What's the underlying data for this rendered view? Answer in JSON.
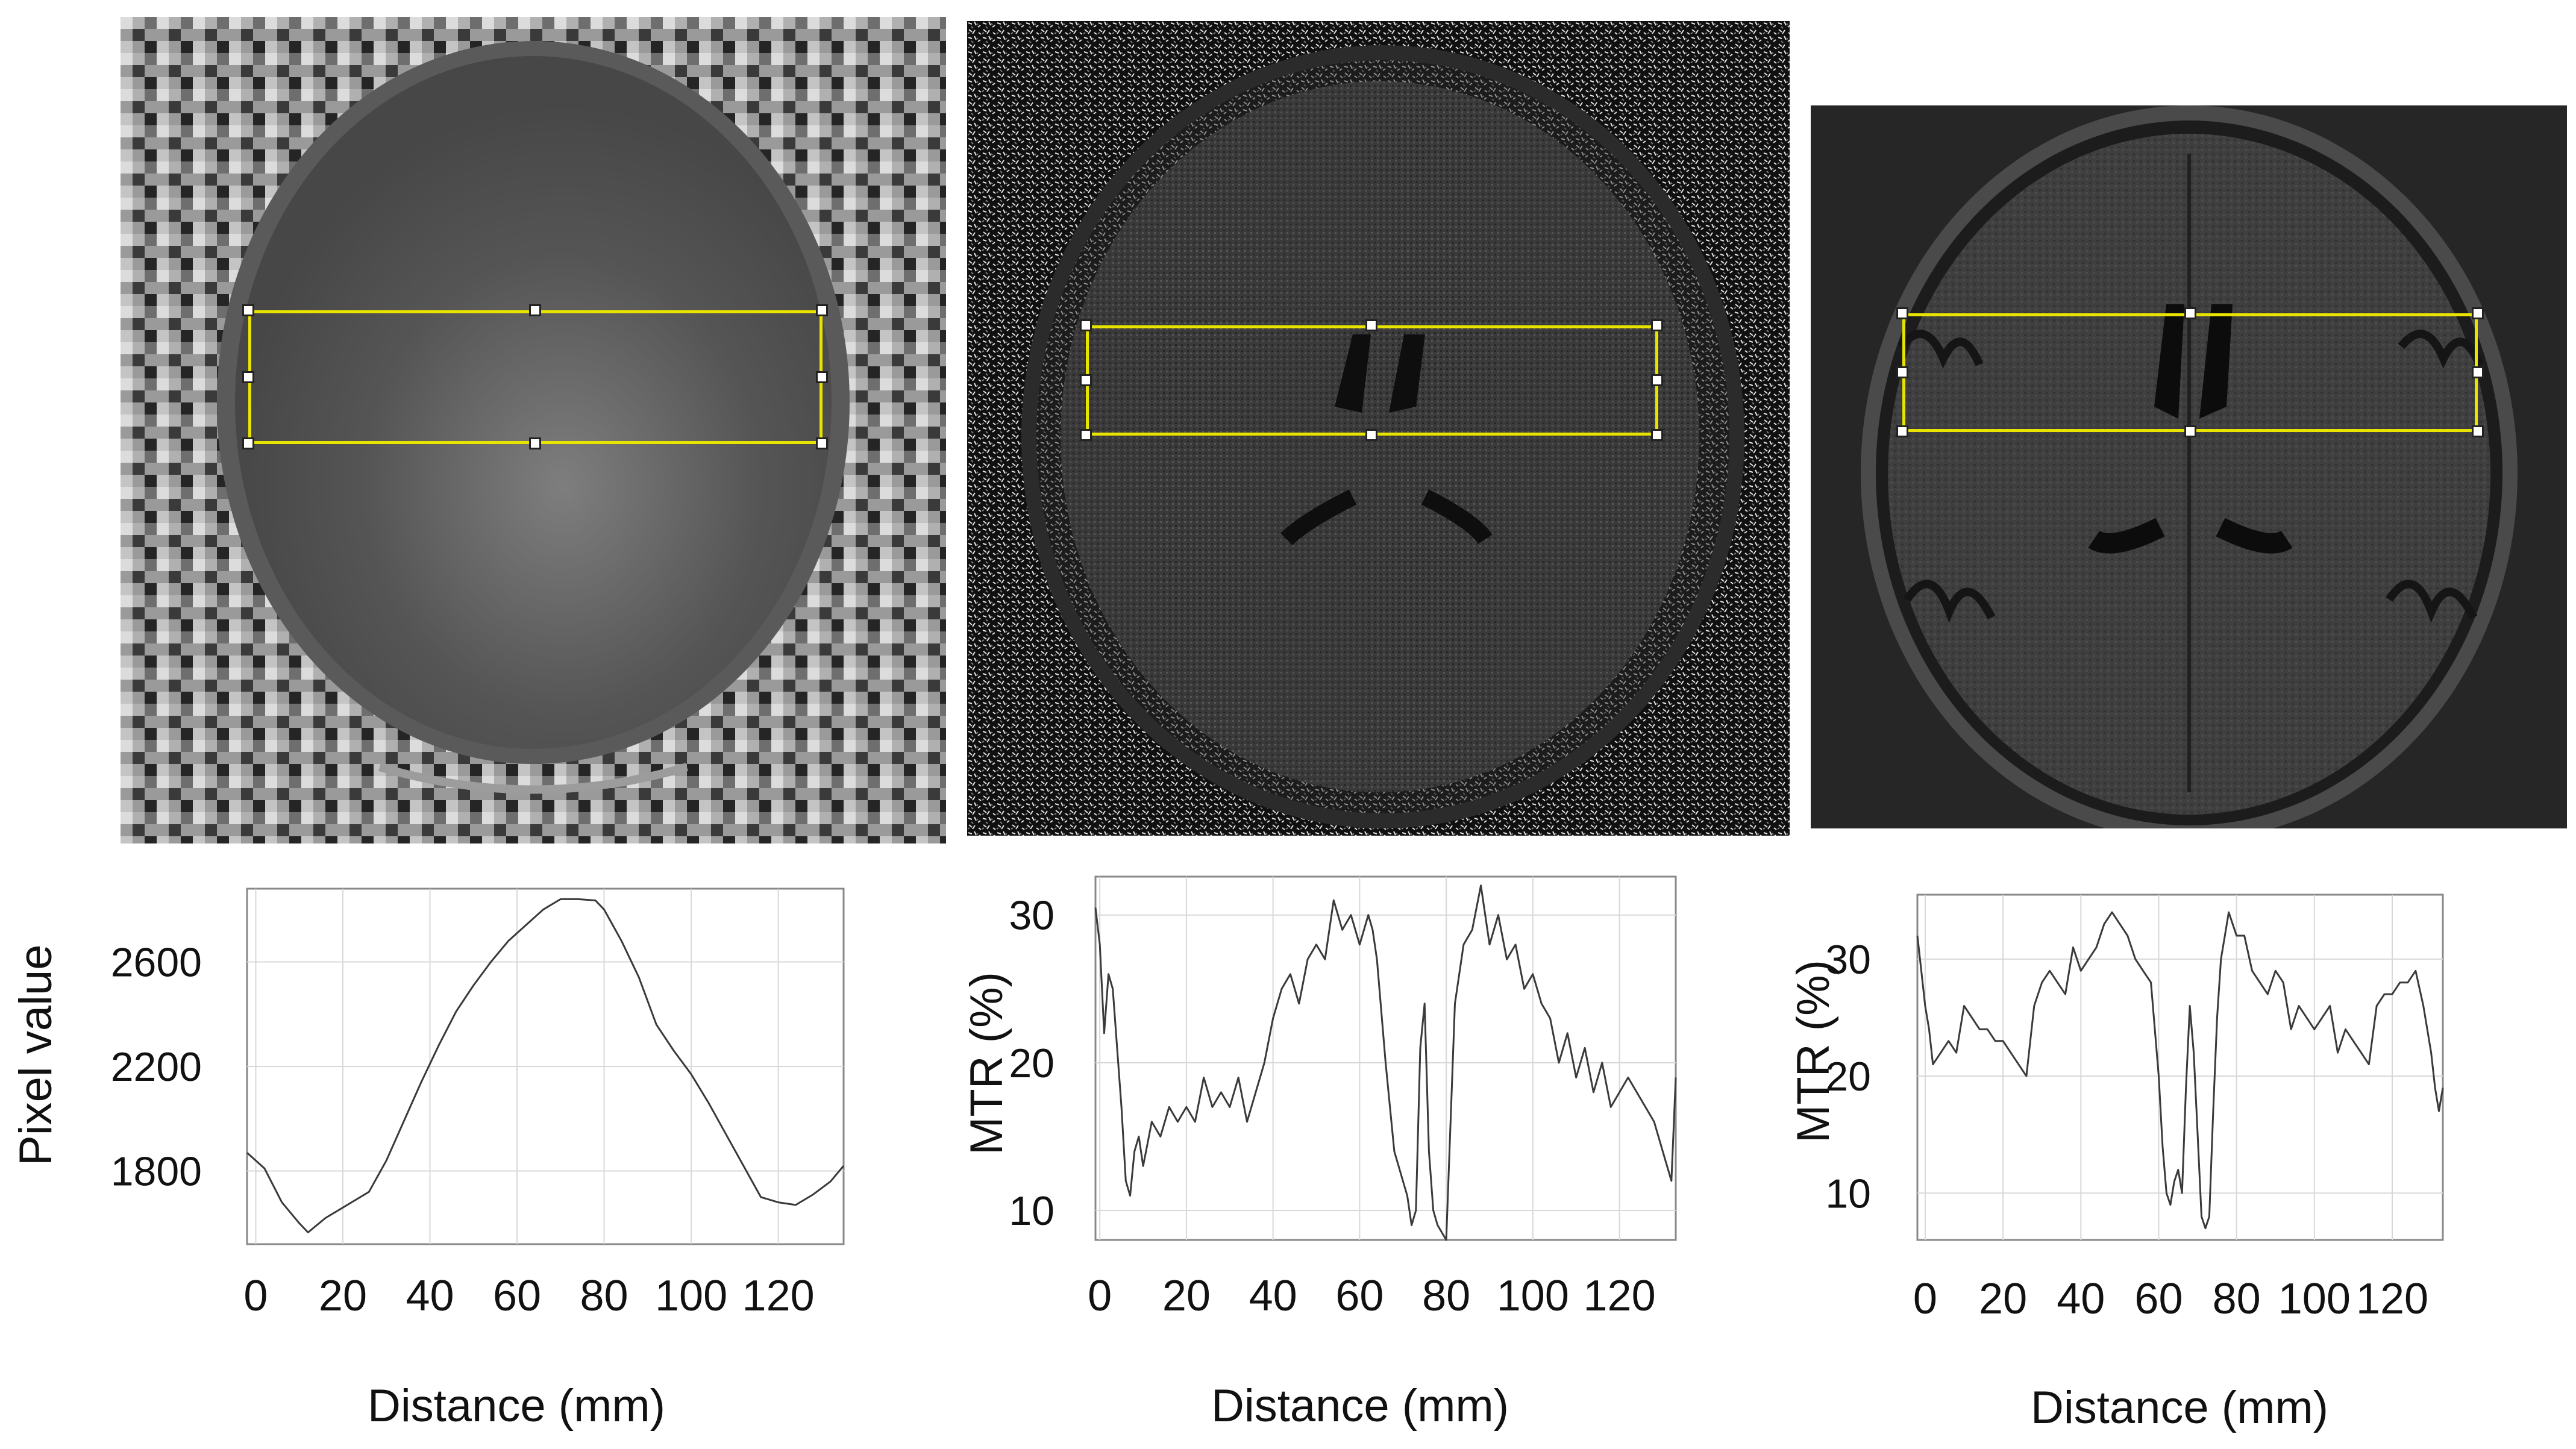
{
  "figure": {
    "panels": [
      {
        "image": "b1-map-axial",
        "image_desc_icon": "mri-image-icon"
      },
      {
        "image": "mtr-map-axial",
        "image_desc_icon": "mri-image-icon"
      },
      {
        "image": "t1-axial",
        "image_desc_icon": "mri-image-icon"
      }
    ]
  },
  "chart_data": [
    {
      "type": "line",
      "xlabel": "Distance (mm)",
      "ylabel": "Pixel value",
      "xticks": [
        0,
        20,
        40,
        60,
        80,
        100,
        120
      ],
      "yticks": [
        1800,
        2200,
        2600
      ],
      "xlim": [
        -2,
        135
      ],
      "ylim": [
        1520,
        2880
      ],
      "grid": true,
      "series": [
        {
          "x": [
            -2,
            2,
            6,
            10,
            12,
            16,
            20,
            24,
            26,
            30,
            34,
            38,
            42,
            46,
            50,
            54,
            58,
            62,
            66,
            70,
            74,
            78,
            80,
            84,
            88,
            92,
            96,
            100,
            104,
            108,
            112,
            116,
            120,
            124,
            128,
            132,
            135
          ],
          "y": [
            1870,
            1810,
            1680,
            1600,
            1565,
            1620,
            1660,
            1700,
            1720,
            1840,
            1990,
            2140,
            2280,
            2410,
            2510,
            2600,
            2680,
            2740,
            2800,
            2840,
            2840,
            2835,
            2800,
            2680,
            2540,
            2360,
            2260,
            2170,
            2060,
            1940,
            1820,
            1700,
            1680,
            1670,
            1710,
            1760,
            1820
          ]
        }
      ]
    },
    {
      "type": "line",
      "xlabel": "Distance (mm)",
      "ylabel": "MTR (%)",
      "xticks": [
        0,
        20,
        40,
        60,
        80,
        100,
        120
      ],
      "yticks": [
        10,
        20,
        30
      ],
      "xlim": [
        -1,
        133
      ],
      "ylim": [
        8,
        32.6
      ],
      "grid": true,
      "series": [
        {
          "x": [
            -1,
            0,
            1,
            2,
            3,
            4,
            5,
            6,
            7,
            8,
            9,
            10,
            12,
            14,
            16,
            18,
            20,
            22,
            24,
            26,
            28,
            30,
            32,
            34,
            36,
            38,
            40,
            42,
            44,
            46,
            48,
            50,
            52,
            54,
            56,
            58,
            60,
            62,
            63,
            64,
            66,
            68,
            70,
            71,
            72,
            73,
            74,
            75,
            76,
            77,
            78,
            80,
            82,
            84,
            86,
            88,
            90,
            92,
            94,
            96,
            98,
            100,
            102,
            104,
            106,
            108,
            110,
            112,
            114,
            116,
            118,
            120,
            122,
            124,
            126,
            128,
            130,
            132,
            133
          ],
          "y": [
            30.5,
            28,
            22,
            26,
            25,
            21,
            17,
            12,
            11,
            14,
            15,
            13,
            16,
            15,
            17,
            16,
            17,
            16,
            19,
            17,
            18,
            17,
            19,
            16,
            18,
            20,
            23,
            25,
            26,
            24,
            27,
            28,
            27,
            31,
            29,
            30,
            28,
            30,
            29,
            27,
            20,
            14,
            12,
            11,
            9,
            10,
            21,
            24,
            14,
            10,
            9,
            8,
            24,
            28,
            29,
            32,
            28,
            30,
            27,
            28,
            25,
            26,
            24,
            23,
            20,
            22,
            19,
            21,
            18,
            20,
            17,
            18,
            19,
            18,
            17,
            16,
            14,
            12,
            19
          ]
        }
      ]
    },
    {
      "type": "line",
      "xlabel": "Distance (mm)",
      "ylabel": "MTR (%)",
      "xticks": [
        0,
        20,
        40,
        60,
        80,
        100,
        120
      ],
      "yticks": [
        10,
        20,
        30
      ],
      "xlim": [
        -2,
        133
      ],
      "ylim": [
        6,
        35.5
      ],
      "grid": true,
      "series": [
        {
          "x": [
            -2,
            -1,
            0,
            1,
            2,
            4,
            6,
            8,
            10,
            12,
            14,
            16,
            18,
            20,
            22,
            24,
            26,
            28,
            30,
            32,
            34,
            36,
            38,
            40,
            42,
            44,
            46,
            48,
            50,
            52,
            54,
            56,
            58,
            60,
            61,
            62,
            63,
            64,
            65,
            66,
            67,
            68,
            69,
            70,
            71,
            72,
            73,
            74,
            75,
            76,
            77,
            78,
            79,
            80,
            82,
            84,
            86,
            88,
            90,
            92,
            94,
            96,
            98,
            100,
            102,
            104,
            106,
            108,
            110,
            112,
            114,
            116,
            118,
            120,
            122,
            124,
            126,
            128,
            130,
            131,
            132,
            133
          ],
          "y": [
            32,
            29,
            26,
            24,
            21,
            22,
            23,
            22,
            26,
            25,
            24,
            24,
            23,
            23,
            22,
            21,
            20,
            26,
            28,
            29,
            28,
            27,
            31,
            29,
            30,
            31,
            33,
            34,
            33,
            32,
            30,
            29,
            28,
            20,
            14,
            10,
            9,
            11,
            12,
            10,
            19,
            26,
            22,
            15,
            8,
            7,
            8,
            17,
            25,
            30,
            32,
            34,
            33,
            32,
            32,
            29,
            28,
            27,
            29,
            28,
            24,
            26,
            25,
            24,
            25,
            26,
            22,
            24,
            23,
            22,
            21,
            26,
            27,
            27,
            28,
            28,
            29,
            26,
            22,
            19,
            17,
            19
          ]
        }
      ]
    }
  ]
}
